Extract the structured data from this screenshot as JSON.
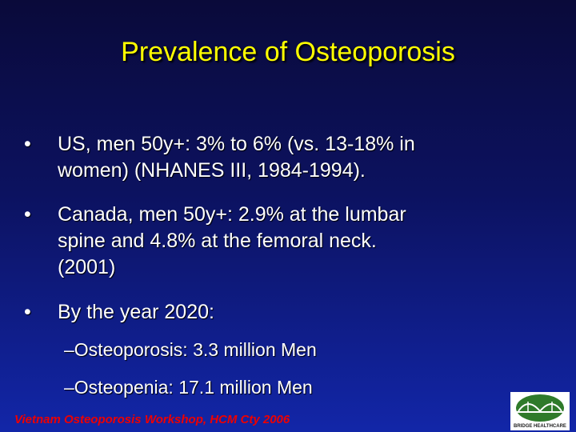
{
  "title": "Prevalence of Osteoporosis",
  "bullets": [
    {
      "lines": [
        "US, men 50y+: 3% to 6% (vs. 13-18% in",
        "women) (NHANES III, 1984-1994)."
      ]
    },
    {
      "lines": [
        "Canada, men 50y+: 2.9% at the lumbar",
        "spine and 4.8% at the femoral neck.",
        "(2001)"
      ]
    },
    {
      "lines": [
        "By the year 2020:"
      ],
      "sub_bullets": [
        "Osteoporosis: 3.3 million Men",
        "Osteopenia: 17.1 million Men"
      ]
    }
  ],
  "footer": "Vietnam Osteoporosis Workshop, HCM Cty 2006",
  "logo": {
    "text": "BRIDGE HEALTHCARE"
  }
}
